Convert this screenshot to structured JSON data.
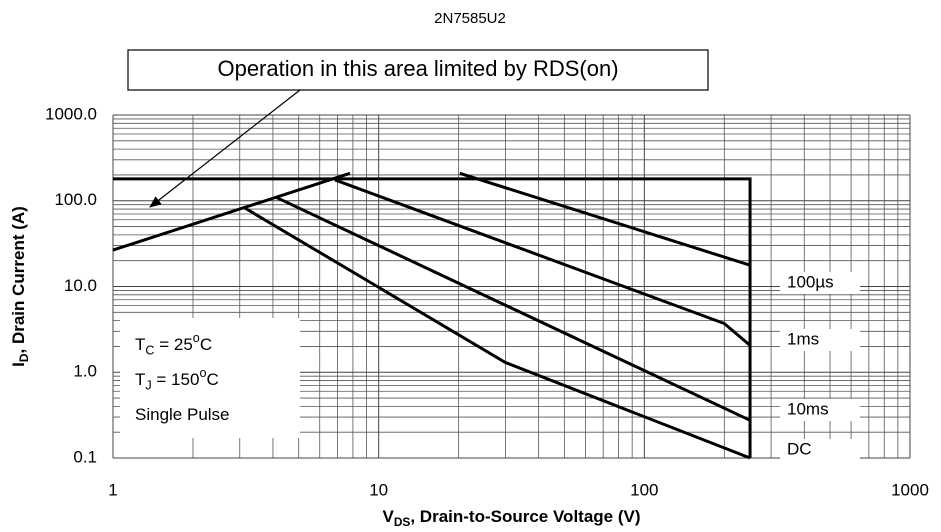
{
  "chart_data": {
    "type": "line",
    "title": "2N7585U2",
    "annotation": "Operation in this area limited by RDS(on)",
    "x_label": {
      "symbol": "V",
      "subscript": "DS",
      "text": ", Drain-to-Source Voltage (V)"
    },
    "y_label": {
      "symbol": "I",
      "subscript": "D",
      "text": ", Drain Current (A)"
    },
    "conditions": [
      {
        "symbol": "T",
        "subscript": "C",
        "text": " = 25",
        "degree": "o",
        "unit": "C"
      },
      {
        "symbol": "T",
        "subscript": "J",
        "text": " = 150",
        "degree": "o",
        "unit": "C"
      },
      {
        "text": "Single Pulse"
      }
    ],
    "log_x": true,
    "log_y": true,
    "grid": true,
    "xlim": [
      1,
      1000
    ],
    "ylim": [
      0.1,
      1000
    ],
    "xticks": [
      1,
      10,
      100,
      1000
    ],
    "yticks": [
      {
        "value": 1000,
        "label": "1000.0"
      },
      {
        "value": 100,
        "label": "100.0"
      },
      {
        "value": 10,
        "label": "10.0"
      },
      {
        "value": 1,
        "label": "1.0"
      },
      0.1
    ],
    "limits": [
      {
        "color": "#000000",
        "x": [
          1,
          7.8
        ],
        "y": [
          26.6,
          209
        ]
      },
      {
        "color": "#000000",
        "x": [
          1,
          250,
          250
        ],
        "y": [
          180,
          180,
          0.1
        ]
      }
    ],
    "series": [
      {
        "name": "100µs",
        "color": "#000000",
        "x": [
          20.2,
          250
        ],
        "y": [
          209,
          17.7
        ]
      },
      {
        "name": "1ms",
        "color": "#000000",
        "x": [
          6.85,
          200,
          250
        ],
        "y": [
          175,
          3.7,
          2.06
        ]
      },
      {
        "name": "10ms",
        "color": "#000000",
        "x": [
          4.1,
          250
        ],
        "y": [
          110,
          0.275
        ]
      },
      {
        "name": "DC",
        "color": "#000000",
        "x": [
          3.1,
          30,
          250
        ],
        "y": [
          84,
          1.3,
          0.1
        ]
      }
    ]
  }
}
